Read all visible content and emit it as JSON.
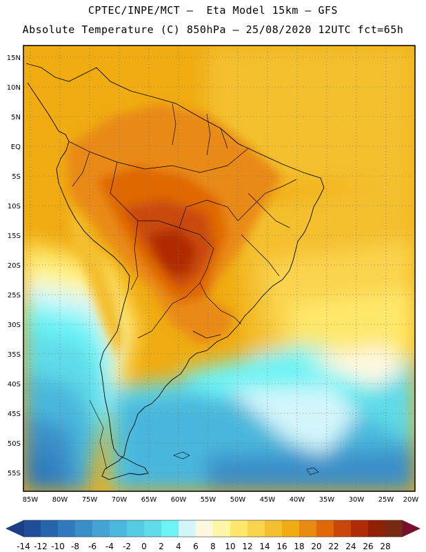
{
  "header": {
    "line1": "CPTEC/INPE/MCT –  Eta Model 15km – GFS",
    "line2": "Absolute Temperature (C) 850hPa – 25/08/2020 12UTC fct=65h"
  },
  "map": {
    "region": "South America",
    "lon_range": [
      -85,
      -20
    ],
    "lat_range": [
      -58,
      16
    ],
    "lat_labels": [
      "15N",
      "10N",
      "5N",
      "EQ",
      "5S",
      "10S",
      "15S",
      "20S",
      "25S",
      "30S",
      "35S",
      "40S",
      "45S",
      "50S",
      "55S"
    ],
    "lon_labels": [
      "85W",
      "80W",
      "75W",
      "70W",
      "65W",
      "60W",
      "55W",
      "50W",
      "45W",
      "40W",
      "35W",
      "30W",
      "25W",
      "20W"
    ],
    "gridlines": true
  },
  "colorbar": {
    "ticks": [
      "-14",
      "-12",
      "-10",
      "-8",
      "-6",
      "-4",
      "-2",
      "0",
      "2",
      "4",
      "6",
      "8",
      "10",
      "12",
      "14",
      "16",
      "18",
      "20",
      "22",
      "24",
      "26",
      "28"
    ],
    "colors": [
      "#1f4e98",
      "#2664ac",
      "#2f7bbd",
      "#3b8fc9",
      "#45a4d4",
      "#4ab7dc",
      "#55cbe3",
      "#5fdbe9",
      "#6df3f5",
      "#d3f6fb",
      "#fff8e1",
      "#fff7a5",
      "#ffe86b",
      "#fbd44d",
      "#f4c02f",
      "#f0ac11",
      "#e98a13",
      "#e06806",
      "#c94808",
      "#b02c06",
      "#902006",
      "#762a14"
    ],
    "under_color": "#1a3f85",
    "over_color": "#7a0f2b"
  }
}
